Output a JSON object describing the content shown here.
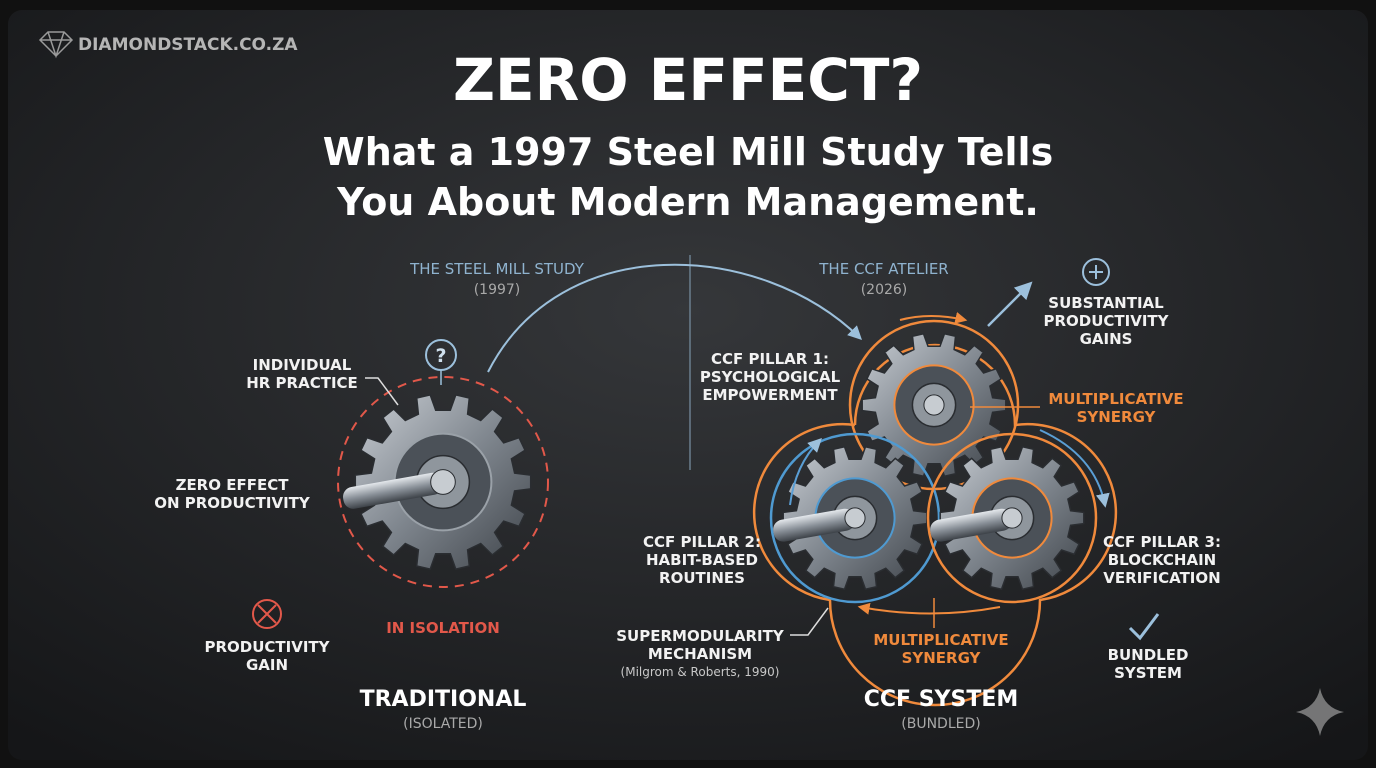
{
  "brand": "DIAMONDSTACK.CO.ZA",
  "title": "ZERO EFFECT?",
  "subtitle": [
    "What a 1997 Steel Mill Study Tells",
    "You About Modern Management."
  ],
  "left": {
    "heading": "THE STEEL MILL STUDY",
    "year": "(1997)",
    "question": "?",
    "hr_practice": [
      "INDIVIDUAL",
      "HR PRACTICE"
    ],
    "zero_effect": [
      "ZERO EFFECT",
      "ON PRODUCTIVITY"
    ],
    "productivity_gain": [
      "PRODUCTIVITY",
      "GAIN"
    ],
    "isolation": "IN ISOLATION",
    "footer_title": "TRADITIONAL",
    "footer_sub": "(ISOLATED)"
  },
  "right": {
    "heading": "THE CCF ATELIER",
    "year": "(2026)",
    "gains": [
      "SUBSTANTIAL",
      "PRODUCTIVITY",
      "GAINS"
    ],
    "pillar1": [
      "CCF PILLAR 1:",
      "PSYCHOLOGICAL",
      "EMPOWERMENT"
    ],
    "synergy_top": [
      "MULTIPLICATIVE",
      "SYNERGY"
    ],
    "pillar2": [
      "CCF PILLAR 2:",
      "HABIT-BASED",
      "ROUTINES"
    ],
    "pillar3": [
      "CCF PILLAR 3:",
      "BLOCKCHAIN",
      "VERIFICATION"
    ],
    "mechanism": [
      "SUPERMODULARITY",
      "MECHANISM"
    ],
    "citation": "(Milgrom & Roberts, 1990)",
    "synergy_bottom": [
      "MULTIPLICATIVE",
      "SYNERGY"
    ],
    "bundled": [
      "BUNDLED",
      "SYSTEM"
    ],
    "footer_title": "CCF SYSTEM",
    "footer_sub": "(BUNDLED)"
  }
}
